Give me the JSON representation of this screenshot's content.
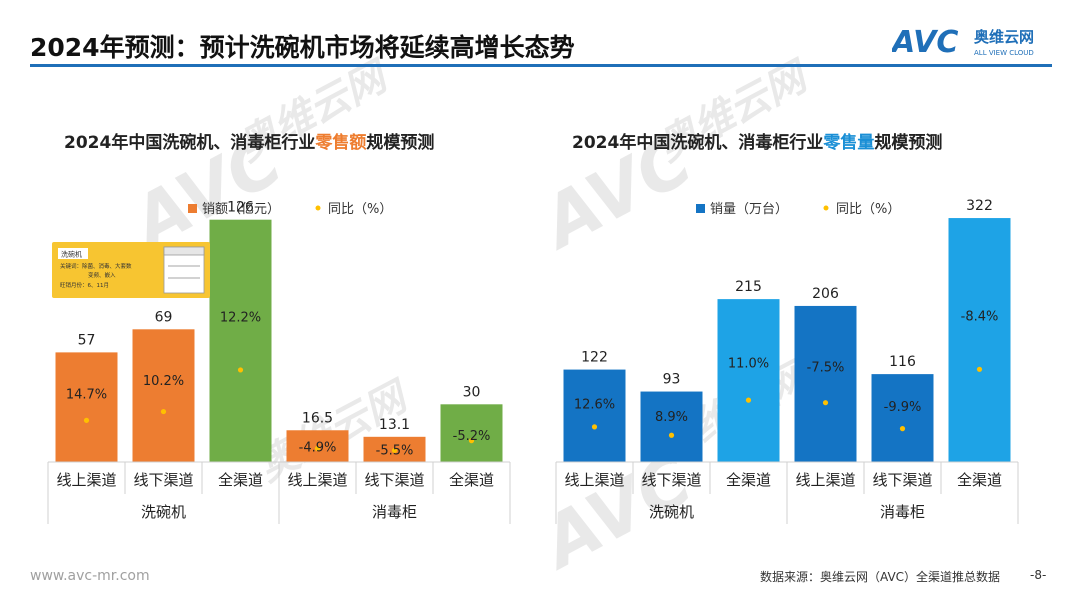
{
  "header": {
    "title": "2024年预测：预计洗碗机市场将延续高增长态势",
    "logo_text": "AVC",
    "logo_cn": "奥维云网",
    "logo_en": "ALL VIEW CLOUD"
  },
  "watermark": {
    "text": "AVC",
    "cn": "奥维云网",
    "en": "ALL VIEW CLOUD"
  },
  "left_title": {
    "pre": "2024年中国洗碗机、消毒柜行业",
    "highlight": "零售额",
    "post": "规模预测"
  },
  "right_title": {
    "pre": "2024年中国洗碗机、消毒柜行业",
    "highlight": "零售量",
    "post": "规模预测"
  },
  "badge": {
    "label": "洗碗机",
    "line1": "关键词：除菌、消毒、大套数",
    "line2": "变频、嵌入",
    "line3": "旺销月份：6、11月"
  },
  "chart_data": [
    {
      "type": "bar",
      "title": "2024年中国洗碗机、消毒柜行业零售额规模预测",
      "legend": [
        "销额（亿元）",
        "同比（%）"
      ],
      "categories": [
        "线上渠道",
        "线下渠道",
        "全渠道",
        "线上渠道",
        "线下渠道",
        "全渠道"
      ],
      "groups": [
        "洗碗机",
        "消毒柜"
      ],
      "values": [
        57,
        69,
        126,
        16.5,
        13.1,
        30
      ],
      "value_labels": [
        "57",
        "69",
        "126",
        "16.5",
        "13.1",
        "30"
      ],
      "yoy": [
        14.7,
        10.2,
        12.2,
        -4.9,
        -5.5,
        -5.2
      ],
      "yoy_labels": [
        "14.7%",
        "10.2%",
        "12.2%",
        "-4.9%",
        "-5.5%",
        "-5.2%"
      ],
      "colors": [
        "#ed7d31",
        "#ed7d31",
        "#70ad47",
        "#ed7d31",
        "#ed7d31",
        "#70ad47"
      ],
      "ylim": [
        0,
        130
      ]
    },
    {
      "type": "bar",
      "title": "2024年中国洗碗机、消毒柜行业零售量规模预测",
      "legend": [
        "销量（万台）",
        "同比（%）"
      ],
      "categories": [
        "线上渠道",
        "线下渠道",
        "全渠道",
        "线上渠道",
        "线下渠道",
        "全渠道"
      ],
      "groups": [
        "洗碗机",
        "消毒柜"
      ],
      "values": [
        122,
        93,
        215,
        206,
        116,
        322
      ],
      "value_labels": [
        "122",
        "93",
        "215",
        "206",
        "116",
        "322"
      ],
      "yoy": [
        12.6,
        8.9,
        11.0,
        -7.5,
        -9.9,
        -8.4
      ],
      "yoy_labels": [
        "12.6%",
        "8.9%",
        "11.0%",
        "-7.5%",
        "-9.9%",
        "-8.4%"
      ],
      "colors": [
        "#1474c4",
        "#1474c4",
        "#1ea3e6",
        "#1474c4",
        "#1474c4",
        "#1ea3e6"
      ],
      "ylim": [
        0,
        330
      ]
    }
  ],
  "footer": {
    "url": "www.avc-mr.com",
    "source": "数据来源：奥维云网（AVC）全渠道推总数据",
    "page": "-8-"
  },
  "colors": {
    "accent_blue": "#1f6fb8",
    "orange": "#ed7d31",
    "green": "#70ad47",
    "yoy_dot": "#ffc000"
  }
}
